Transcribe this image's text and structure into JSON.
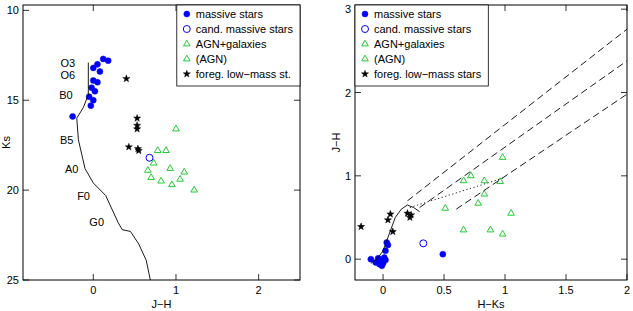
{
  "chart_data": [
    {
      "type": "scatter",
      "xlabel": "J−H",
      "ylabel": "Ks",
      "xlim": [
        -0.85,
        2.5
      ],
      "ylim": [
        25,
        9.7
      ],
      "xticks": [
        0,
        1,
        2
      ],
      "yticks": [
        10,
        15,
        20,
        25
      ],
      "legend": "upper right",
      "series": [
        {
          "name": "massive stars",
          "color": "#0000ff",
          "marker": "circle",
          "x": [
            0.12,
            0.18,
            0.05,
            0.0,
            0.08,
            0.0,
            0.05,
            -0.02,
            0.02,
            -0.05,
            0.0,
            -0.03,
            -0.25
          ],
          "values": [
            12.7,
            12.8,
            13.0,
            13.2,
            13.4,
            13.9,
            14.0,
            14.3,
            14.5,
            14.8,
            15.0,
            15.3,
            15.9
          ]
        },
        {
          "name": "cand. massive stars",
          "color": "#0000ff",
          "marker": "circle-open",
          "x": [
            0.68
          ],
          "values": [
            18.2
          ]
        },
        {
          "name": "AGN+galaxies",
          "color": "#22cc33",
          "marker": "triangle-open",
          "x": [
            1.0,
            0.78,
            0.88,
            0.73,
            0.93,
            1.1
          ],
          "values": [
            16.6,
            17.8,
            17.8,
            18.5,
            18.8,
            19.0
          ]
        },
        {
          "name": "(AGN)",
          "color": "#22cc33",
          "marker": "triangle-open",
          "x": [
            0.66,
            0.7,
            0.82,
            0.95,
            1.22,
            1.05
          ],
          "values": [
            18.9,
            19.3,
            19.5,
            19.7,
            20.0,
            19.4
          ]
        },
        {
          "name": "foreg. low−mass st.",
          "color": "#000000",
          "marker": "star",
          "x": [
            0.4,
            0.53,
            0.53,
            0.53,
            0.43,
            0.54,
            0.55
          ],
          "values": [
            13.8,
            16.0,
            16.4,
            16.6,
            17.6,
            17.7,
            17.8
          ]
        },
        {
          "type": "line",
          "line_style": "solid",
          "color": "#000000",
          "x": [
            -0.06,
            -0.06,
            -0.12,
            -0.2,
            -0.18,
            -0.1,
            0.0,
            0.15,
            0.3,
            0.35,
            0.45,
            0.55,
            0.64,
            0.69
          ],
          "values": [
            12.9,
            14.7,
            15.4,
            16.0,
            17.2,
            18.8,
            19.6,
            20.3,
            21.8,
            22.2,
            22.3,
            23.0,
            23.9,
            25.0
          ]
        }
      ],
      "annotations": [
        {
          "text": "O3",
          "x": -0.22,
          "y": 12.9
        },
        {
          "text": "O6",
          "x": -0.22,
          "y": 13.6
        },
        {
          "text": "B0",
          "x": -0.25,
          "y": 14.7
        },
        {
          "text": "B5",
          "x": -0.24,
          "y": 17.2
        },
        {
          "text": "A0",
          "x": -0.18,
          "y": 18.8
        },
        {
          "text": "F0",
          "x": -0.04,
          "y": 20.3
        },
        {
          "text": "G0",
          "x": 0.13,
          "y": 21.8
        }
      ]
    },
    {
      "type": "scatter",
      "xlabel": "H−Ks",
      "ylabel": "J−H",
      "xlim": [
        -0.23,
        2.0
      ],
      "ylim": [
        -0.25,
        3.05
      ],
      "xticks": [
        0,
        0.5,
        1,
        1.5,
        2
      ],
      "yticks": [
        0,
        1,
        2,
        3
      ],
      "legend": "upper left",
      "series": [
        {
          "name": "massive stars",
          "color": "#0000ff",
          "marker": "circle",
          "x": [
            -0.1,
            -0.06,
            -0.03,
            -0.02,
            0.01,
            0.02,
            0.04,
            0.03,
            -0.01,
            0.0,
            0.49,
            -0.04,
            0.02
          ],
          "values": [
            0.0,
            -0.04,
            -0.06,
            -0.01,
            0.02,
            0.1,
            0.17,
            0.2,
            -0.08,
            -0.05,
            0.06,
            0.01,
            -0.01
          ]
        },
        {
          "name": "cand. massive stars",
          "color": "#0000ff",
          "marker": "circle-open",
          "x": [
            0.33
          ],
          "values": [
            0.19
          ]
        },
        {
          "name": "AGN+galaxies",
          "color": "#22cc33",
          "marker": "triangle-open",
          "x": [
            0.51,
            0.66,
            0.83,
            0.96,
            0.98,
            0.83
          ],
          "values": [
            0.61,
            0.94,
            0.94,
            0.93,
            1.22,
            0.78
          ]
        },
        {
          "name": "(AGN)",
          "color": "#22cc33",
          "marker": "triangle-open",
          "x": [
            0.78,
            0.66,
            0.88,
            0.98,
            0.72,
            1.05
          ],
          "values": [
            0.67,
            0.35,
            0.35,
            0.3,
            1.0,
            0.55
          ]
        },
        {
          "name": "foreg. low−mass stars",
          "color": "#000000",
          "marker": "star",
          "x": [
            -0.18,
            0.08,
            0.04,
            0.06,
            0.2,
            0.23,
            0.22
          ],
          "values": [
            0.39,
            0.33,
            0.47,
            0.54,
            0.55,
            0.53,
            0.5
          ]
        },
        {
          "type": "line",
          "line_style": "solid",
          "color": "#000000",
          "x": [
            -0.1,
            -0.05,
            0.0,
            0.05,
            0.1,
            0.15,
            0.2,
            0.25,
            0.3
          ],
          "values": [
            -0.05,
            0.0,
            0.1,
            0.3,
            0.5,
            0.6,
            0.65,
            0.62,
            0.57
          ]
        },
        {
          "type": "line",
          "line_style": "dotted",
          "color": "#000000",
          "x": [
            0.22,
            1.0
          ],
          "values": [
            0.62,
            0.98
          ]
        },
        {
          "type": "line",
          "line_style": "dashed",
          "color": "#000000",
          "x": [
            0.2,
            2.0
          ],
          "values": [
            0.7,
            2.76
          ]
        },
        {
          "type": "line",
          "line_style": "dashed",
          "color": "#000000",
          "x": [
            0.3,
            2.0
          ],
          "values": [
            0.62,
            2.38
          ]
        },
        {
          "type": "line",
          "line_style": "dashed",
          "color": "#000000",
          "x": [
            0.6,
            2.0
          ],
          "values": [
            0.6,
            1.98
          ]
        }
      ]
    }
  ]
}
